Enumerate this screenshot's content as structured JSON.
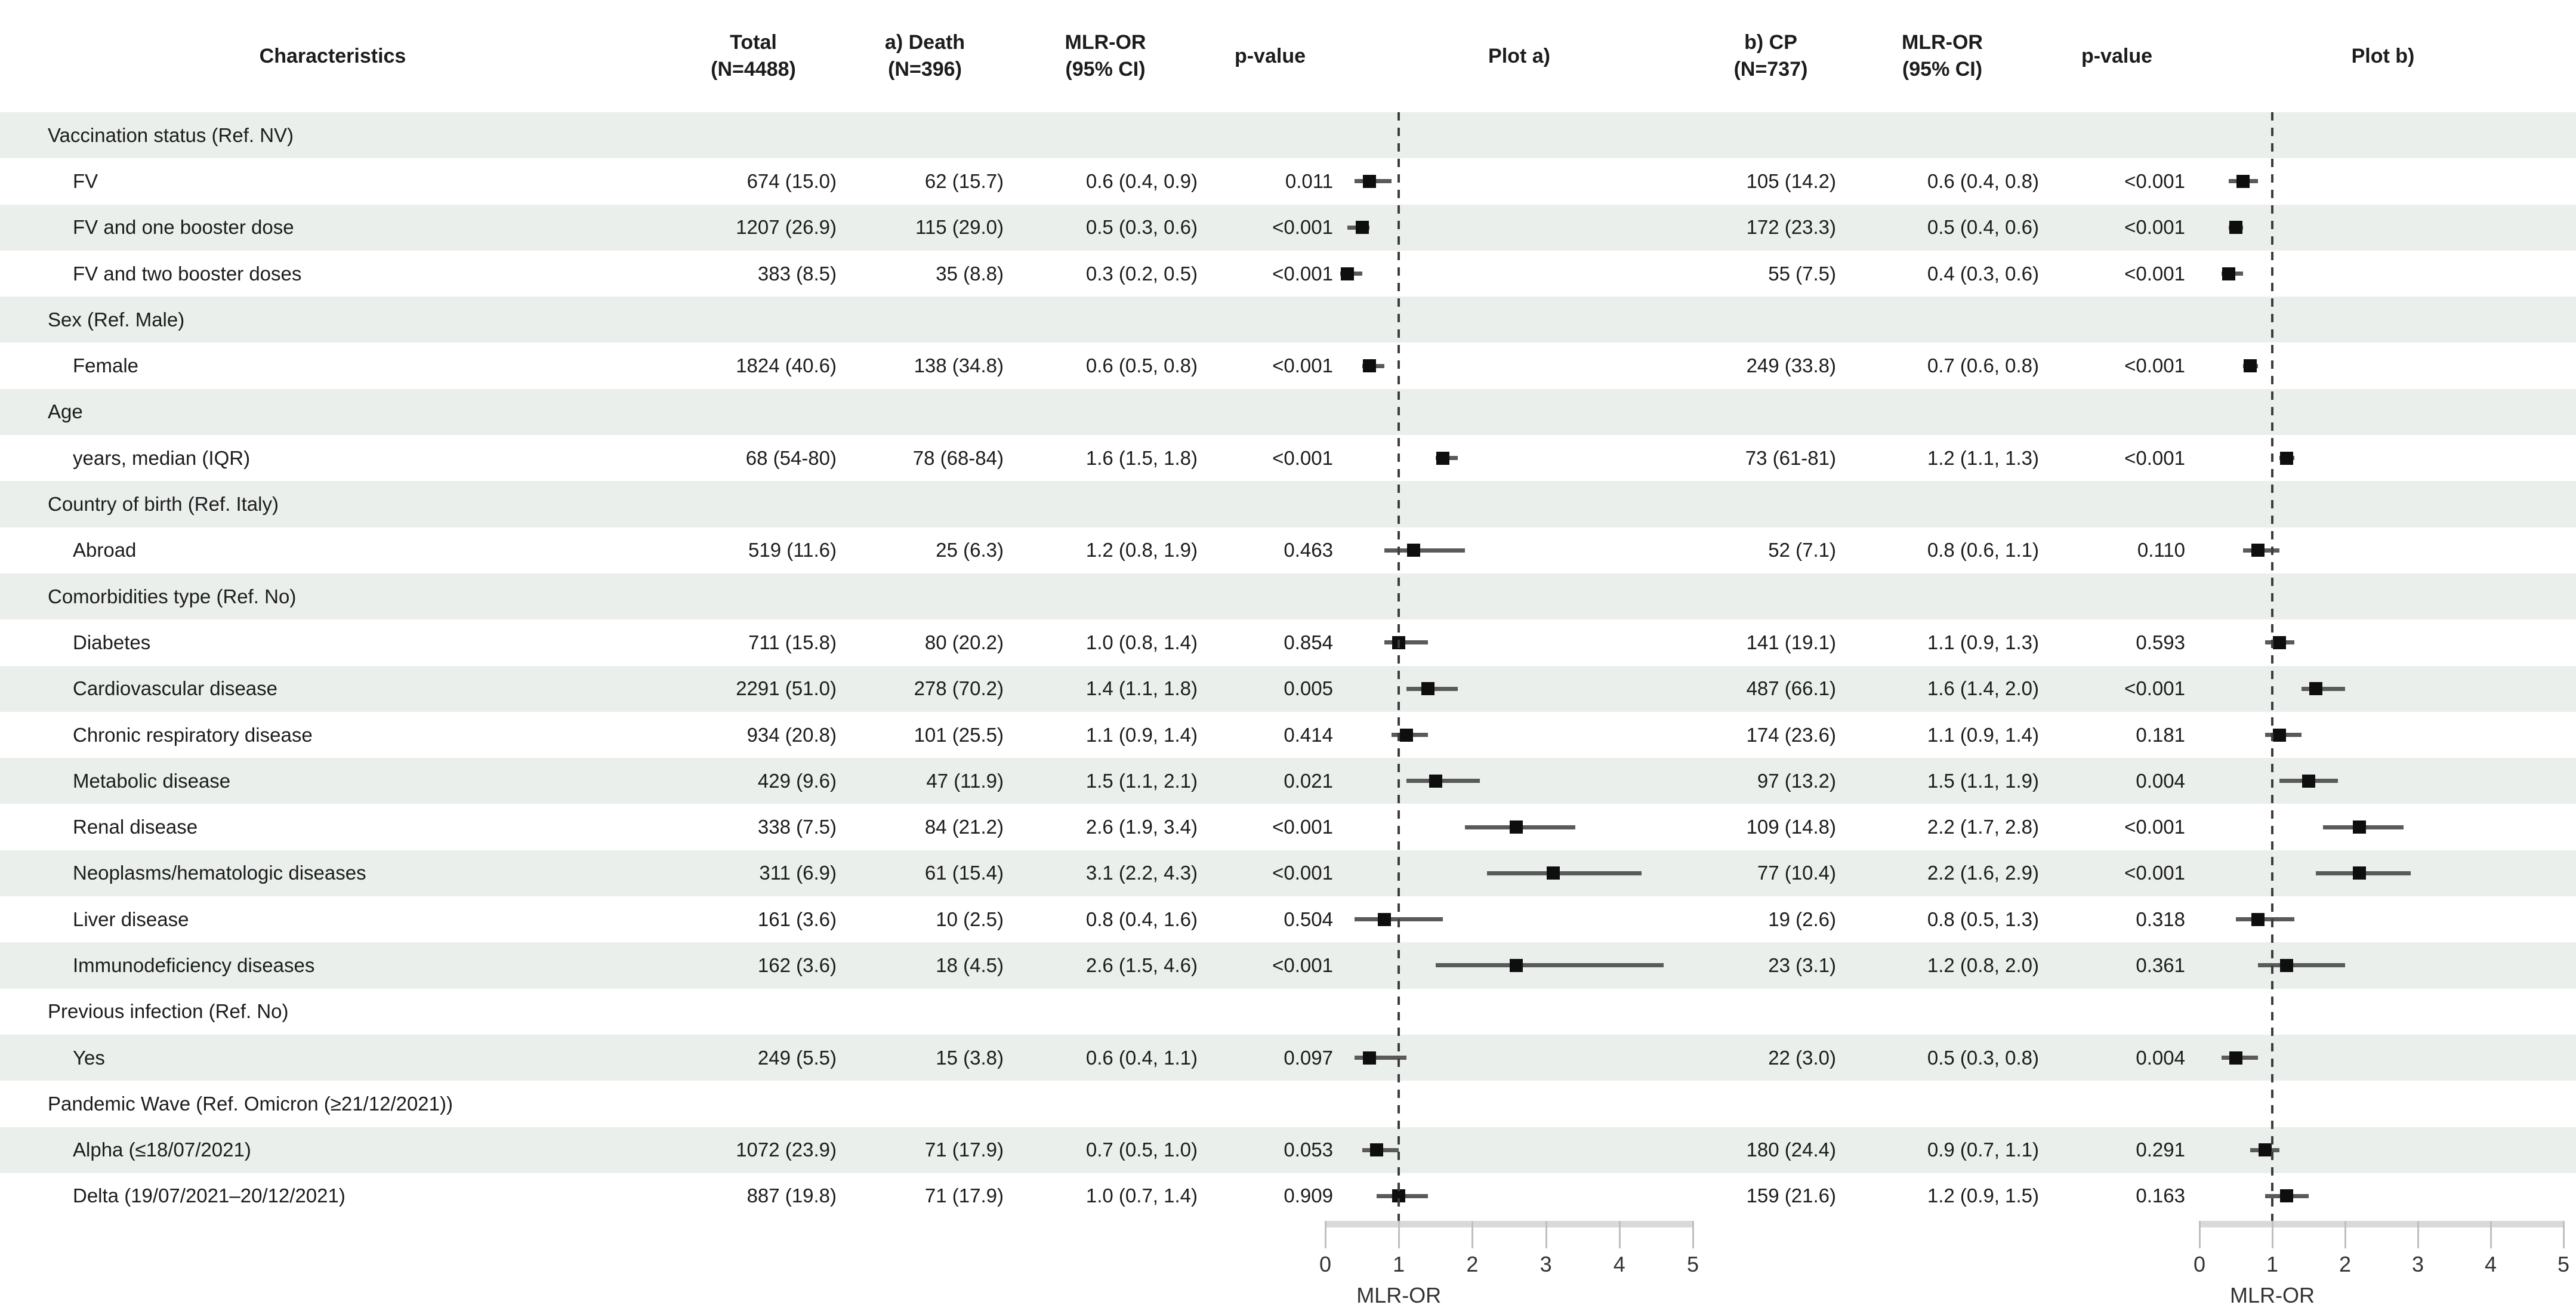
{
  "header": {
    "characteristics": "Characteristics",
    "total_l1": "Total",
    "total_l2": "(N=4488)",
    "death_l1": "a) Death",
    "death_l2": "(N=396)",
    "mlr_a_l1": "MLR-OR",
    "mlr_a_l2": "(95% CI)",
    "pvalue_a": "p-value",
    "plot_a": "Plot a)",
    "cp_l1": "b) CP",
    "cp_l2": "(N=737)",
    "mlr_b_l1": "MLR-OR",
    "mlr_b_l2": "(95% CI)",
    "pvalue_b": "p-value",
    "plot_b": "Plot b)"
  },
  "rows": [
    {
      "type": "group",
      "label": "Vaccination status (Ref. NV)"
    },
    {
      "type": "data",
      "label": "FV",
      "total": "674 (15.0)",
      "death": "62 (15.7)",
      "or_a": "0.6 (0.4, 0.9)",
      "p_a": "0.011",
      "a": {
        "est": 0.6,
        "lo": 0.4,
        "hi": 0.9
      },
      "cp": "105 (14.2)",
      "or_b": "0.6 (0.4, 0.8)",
      "p_b": "<0.001",
      "b": {
        "est": 0.6,
        "lo": 0.4,
        "hi": 0.8
      }
    },
    {
      "type": "data",
      "label": "FV and one booster dose",
      "total": "1207 (26.9)",
      "death": "115 (29.0)",
      "or_a": "0.5 (0.3, 0.6)",
      "p_a": "<0.001",
      "a": {
        "est": 0.5,
        "lo": 0.3,
        "hi": 0.6
      },
      "cp": "172 (23.3)",
      "or_b": "0.5 (0.4, 0.6)",
      "p_b": "<0.001",
      "b": {
        "est": 0.5,
        "lo": 0.4,
        "hi": 0.6
      }
    },
    {
      "type": "data",
      "label": "FV and two booster doses",
      "total": "383 (8.5)",
      "death": "35 (8.8)",
      "or_a": "0.3 (0.2, 0.5)",
      "p_a": "<0.001",
      "a": {
        "est": 0.3,
        "lo": 0.2,
        "hi": 0.5
      },
      "cp": "55 (7.5)",
      "or_b": "0.4 (0.3, 0.6)",
      "p_b": "<0.001",
      "b": {
        "est": 0.4,
        "lo": 0.3,
        "hi": 0.6
      }
    },
    {
      "type": "group",
      "label": "Sex (Ref. Male)"
    },
    {
      "type": "data",
      "label": "Female",
      "total": "1824 (40.6)",
      "death": "138 (34.8)",
      "or_a": "0.6 (0.5, 0.8)",
      "p_a": "<0.001",
      "a": {
        "est": 0.6,
        "lo": 0.5,
        "hi": 0.8
      },
      "cp": "249 (33.8)",
      "or_b": "0.7 (0.6, 0.8)",
      "p_b": "<0.001",
      "b": {
        "est": 0.7,
        "lo": 0.6,
        "hi": 0.8
      }
    },
    {
      "type": "group",
      "label": "Age"
    },
    {
      "type": "data",
      "label": "years, median (IQR)",
      "total": "68 (54-80)",
      "death": "78 (68-84)",
      "or_a": "1.6 (1.5, 1.8)",
      "p_a": "<0.001",
      "a": {
        "est": 1.6,
        "lo": 1.5,
        "hi": 1.8
      },
      "cp": "73 (61-81)",
      "or_b": "1.2 (1.1, 1.3)",
      "p_b": "<0.001",
      "b": {
        "est": 1.2,
        "lo": 1.1,
        "hi": 1.3
      }
    },
    {
      "type": "group",
      "label": "Country of birth  (Ref. Italy)"
    },
    {
      "type": "data",
      "label": "Abroad",
      "total": "519 (11.6)",
      "death": "25 (6.3)",
      "or_a": "1.2 (0.8, 1.9)",
      "p_a": "0.463",
      "a": {
        "est": 1.2,
        "lo": 0.8,
        "hi": 1.9
      },
      "cp": "52 (7.1)",
      "or_b": "0.8 (0.6, 1.1)",
      "p_b": "0.110",
      "b": {
        "est": 0.8,
        "lo": 0.6,
        "hi": 1.1
      }
    },
    {
      "type": "group",
      "label": "Comorbidities type  (Ref. No)"
    },
    {
      "type": "data",
      "label": "Diabetes",
      "total": "711 (15.8)",
      "death": "80 (20.2)",
      "or_a": "1.0 (0.8, 1.4)",
      "p_a": "0.854",
      "a": {
        "est": 1.0,
        "lo": 0.8,
        "hi": 1.4
      },
      "cp": "141 (19.1)",
      "or_b": "1.1 (0.9, 1.3)",
      "p_b": "0.593",
      "b": {
        "est": 1.1,
        "lo": 0.9,
        "hi": 1.3
      }
    },
    {
      "type": "data",
      "label": "Cardiovascular disease",
      "total": "2291 (51.0)",
      "death": "278 (70.2)",
      "or_a": "1.4 (1.1, 1.8)",
      "p_a": "0.005",
      "a": {
        "est": 1.4,
        "lo": 1.1,
        "hi": 1.8
      },
      "cp": "487 (66.1)",
      "or_b": "1.6 (1.4, 2.0)",
      "p_b": "<0.001",
      "b": {
        "est": 1.6,
        "lo": 1.4,
        "hi": 2.0
      }
    },
    {
      "type": "data",
      "label": "Chronic respiratory disease",
      "total": "934 (20.8)",
      "death": "101 (25.5)",
      "or_a": "1.1 (0.9, 1.4)",
      "p_a": "0.414",
      "a": {
        "est": 1.1,
        "lo": 0.9,
        "hi": 1.4
      },
      "cp": "174 (23.6)",
      "or_b": "1.1 (0.9, 1.4)",
      "p_b": "0.181",
      "b": {
        "est": 1.1,
        "lo": 0.9,
        "hi": 1.4
      }
    },
    {
      "type": "data",
      "label": "Metabolic disease",
      "total": "429 (9.6)",
      "death": "47 (11.9)",
      "or_a": "1.5 (1.1, 2.1)",
      "p_a": "0.021",
      "a": {
        "est": 1.5,
        "lo": 1.1,
        "hi": 2.1
      },
      "cp": "97 (13.2)",
      "or_b": "1.5 (1.1, 1.9)",
      "p_b": "0.004",
      "b": {
        "est": 1.5,
        "lo": 1.1,
        "hi": 1.9
      }
    },
    {
      "type": "data",
      "label": "Renal disease",
      "total": "338 (7.5)",
      "death": "84 (21.2)",
      "or_a": "2.6 (1.9, 3.4)",
      "p_a": "<0.001",
      "a": {
        "est": 2.6,
        "lo": 1.9,
        "hi": 3.4
      },
      "cp": "109 (14.8)",
      "or_b": "2.2 (1.7, 2.8)",
      "p_b": "<0.001",
      "b": {
        "est": 2.2,
        "lo": 1.7,
        "hi": 2.8
      }
    },
    {
      "type": "data",
      "label": "Neoplasms/hematologic diseases",
      "total": "311 (6.9)",
      "death": "61 (15.4)",
      "or_a": "3.1 (2.2, 4.3)",
      "p_a": "<0.001",
      "a": {
        "est": 3.1,
        "lo": 2.2,
        "hi": 4.3
      },
      "cp": "77 (10.4)",
      "or_b": "2.2 (1.6, 2.9)",
      "p_b": "<0.001",
      "b": {
        "est": 2.2,
        "lo": 1.6,
        "hi": 2.9
      }
    },
    {
      "type": "data",
      "label": "Liver disease",
      "total": "161 (3.6)",
      "death": "10 (2.5)",
      "or_a": "0.8 (0.4, 1.6)",
      "p_a": "0.504",
      "a": {
        "est": 0.8,
        "lo": 0.4,
        "hi": 1.6
      },
      "cp": "19 (2.6)",
      "or_b": "0.8 (0.5, 1.3)",
      "p_b": "0.318",
      "b": {
        "est": 0.8,
        "lo": 0.5,
        "hi": 1.3
      }
    },
    {
      "type": "data",
      "label": "Immunodeficiency diseases",
      "total": "162 (3.6)",
      "death": "18 (4.5)",
      "or_a": "2.6 (1.5, 4.6)",
      "p_a": "<0.001",
      "a": {
        "est": 2.6,
        "lo": 1.5,
        "hi": 4.6
      },
      "cp": "23 (3.1)",
      "or_b": "1.2 (0.8, 2.0)",
      "p_b": "0.361",
      "b": {
        "est": 1.2,
        "lo": 0.8,
        "hi": 2.0
      }
    },
    {
      "type": "group",
      "label": "Previous infection (Ref. No)"
    },
    {
      "type": "data",
      "label": "Yes",
      "total": "249 (5.5)",
      "death": "15 (3.8)",
      "or_a": "0.6 (0.4, 1.1)",
      "p_a": "0.097",
      "a": {
        "est": 0.6,
        "lo": 0.4,
        "hi": 1.1
      },
      "cp": "22 (3.0)",
      "or_b": "0.5 (0.3, 0.8)",
      "p_b": "0.004",
      "b": {
        "est": 0.5,
        "lo": 0.3,
        "hi": 0.8
      }
    },
    {
      "type": "group",
      "label": "Pandemic Wave  (Ref. Omicron (≥21/12/2021))"
    },
    {
      "type": "data",
      "label": "Alpha (≤18/07/2021)",
      "total": "1072 (23.9)",
      "death": "71 (17.9)",
      "or_a": "0.7 (0.5, 1.0)",
      "p_a": "0.053",
      "a": {
        "est": 0.7,
        "lo": 0.5,
        "hi": 1.0
      },
      "cp": "180 (24.4)",
      "or_b": "0.9 (0.7, 1.1)",
      "p_b": "0.291",
      "b": {
        "est": 0.9,
        "lo": 0.7,
        "hi": 1.1
      }
    },
    {
      "type": "data",
      "label": "Delta (19/07/2021–20/12/2021)",
      "total": "887 (19.8)",
      "death": "71 (17.9)",
      "or_a": "1.0 (0.7, 1.4)",
      "p_a": "0.909",
      "a": {
        "est": 1.0,
        "lo": 0.7,
        "hi": 1.4
      },
      "cp": "159 (21.6)",
      "or_b": "1.2 (0.9, 1.5)",
      "p_b": "0.163",
      "b": {
        "est": 1.2,
        "lo": 0.9,
        "hi": 1.5
      }
    }
  ],
  "axis": {
    "ticks": [
      "0",
      "1",
      "2",
      "3",
      "4",
      "5"
    ],
    "label": "MLR-OR",
    "min": 0,
    "max": 5,
    "ref_line": 1
  },
  "colors": {
    "stripe": "#eaefec",
    "text": "#1c1c1c",
    "marker": "#0e0e0e",
    "ci_line": "#5a5a5a",
    "axis_bar": "#d9d9d9",
    "tick": "#bfbfbf",
    "dashed_line": "#3c3c3c"
  },
  "chart_data": [
    {
      "type": "scatter",
      "subtype": "forest",
      "title": "Plot a) Death — MLR-OR (95% CI)",
      "xlabel": "MLR-OR",
      "xlim": [
        0,
        5
      ],
      "ref_line": 1,
      "grid": false,
      "categories": [
        "FV",
        "FV and one booster dose",
        "FV and two booster doses",
        "Female",
        "years, median (IQR)",
        "Abroad",
        "Diabetes",
        "Cardiovascular disease",
        "Chronic respiratory disease",
        "Metabolic disease",
        "Renal disease",
        "Neoplasms/hematologic diseases",
        "Liver disease",
        "Immunodeficiency diseases",
        "Yes (previous infection)",
        "Alpha (≤18/07/2021)",
        "Delta (19/07/2021–20/12/2021)"
      ],
      "est": [
        0.6,
        0.5,
        0.3,
        0.6,
        1.6,
        1.2,
        1.0,
        1.4,
        1.1,
        1.5,
        2.6,
        3.1,
        0.8,
        2.6,
        0.6,
        0.7,
        1.0
      ],
      "lo": [
        0.4,
        0.3,
        0.2,
        0.5,
        1.5,
        0.8,
        0.8,
        1.1,
        0.9,
        1.1,
        1.9,
        2.2,
        0.4,
        1.5,
        0.4,
        0.5,
        0.7
      ],
      "hi": [
        0.9,
        0.6,
        0.5,
        0.8,
        1.8,
        1.9,
        1.4,
        1.8,
        1.4,
        2.1,
        3.4,
        4.3,
        1.6,
        4.6,
        1.1,
        1.0,
        1.4
      ]
    },
    {
      "type": "scatter",
      "subtype": "forest",
      "title": "Plot b) CP — MLR-OR (95% CI)",
      "xlabel": "MLR-OR",
      "xlim": [
        0,
        5
      ],
      "ref_line": 1,
      "grid": false,
      "categories": [
        "FV",
        "FV and one booster dose",
        "FV and two booster doses",
        "Female",
        "years, median (IQR)",
        "Abroad",
        "Diabetes",
        "Cardiovascular disease",
        "Chronic respiratory disease",
        "Metabolic disease",
        "Renal disease",
        "Neoplasms/hematologic diseases",
        "Liver disease",
        "Immunodeficiency diseases",
        "Yes (previous infection)",
        "Alpha (≤18/07/2021)",
        "Delta (19/07/2021–20/12/2021)"
      ],
      "est": [
        0.6,
        0.5,
        0.4,
        0.7,
        1.2,
        0.8,
        1.1,
        1.6,
        1.1,
        1.5,
        2.2,
        2.2,
        0.8,
        1.2,
        0.5,
        0.9,
        1.2
      ],
      "lo": [
        0.4,
        0.4,
        0.3,
        0.6,
        1.1,
        0.6,
        0.9,
        1.4,
        0.9,
        1.1,
        1.7,
        1.6,
        0.5,
        0.8,
        0.3,
        0.7,
        0.9
      ],
      "hi": [
        0.8,
        0.6,
        0.6,
        0.8,
        1.3,
        1.1,
        1.3,
        2.0,
        1.4,
        1.9,
        2.8,
        2.9,
        1.3,
        2.0,
        0.8,
        1.1,
        1.5
      ]
    }
  ]
}
